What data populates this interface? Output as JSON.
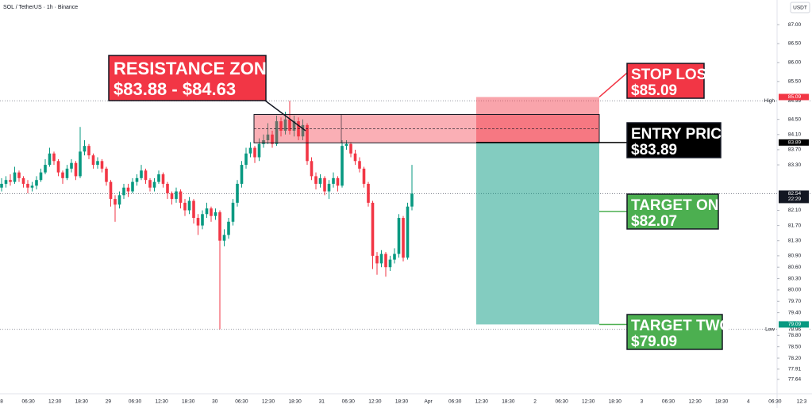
{
  "chart_data": {
    "type": "candlestick",
    "title": "SOL / TetherUS · 1h · Binance",
    "currency": "USDT",
    "up_color": "#089981",
    "down_color": "#f23645",
    "open": [
      82.7,
      82.8,
      82.9,
      82.85,
      83.1,
      82.95,
      82.8,
      82.7,
      82.75,
      82.9,
      83.1,
      83.3,
      83.6,
      83.4,
      83.1,
      82.95,
      83.2,
      83.35,
      83.0,
      83.65,
      83.8,
      83.55,
      83.3,
      83.4,
      83.2,
      82.85,
      82.4,
      82.25,
      82.5,
      82.7,
      82.6,
      82.85,
      82.95,
      83.15,
      82.9,
      82.7,
      82.85,
      83.05,
      82.8,
      82.55,
      82.4,
      82.6,
      82.3,
      82.1,
      82.35,
      81.9,
      81.7,
      82.0,
      82.15,
      81.95,
      82.05,
      81.3,
      81.45,
      81.8,
      82.3,
      82.8,
      83.3,
      83.6,
      83.75,
      83.5,
      83.85,
      83.95,
      84.1,
      83.85,
      84.45,
      84.2,
      84.5,
      84.2,
      84.45,
      84.05,
      84.35,
      83.4,
      83.0,
      82.8,
      82.95,
      82.6,
      82.8,
      82.95,
      82.75,
      83.8,
      83.85,
      83.6,
      83.4,
      83.2,
      82.8,
      82.3,
      80.9,
      80.7,
      80.95,
      80.6,
      80.8,
      80.95,
      81.9,
      80.85,
      82.2
    ],
    "high": [
      82.95,
      83.0,
      83.05,
      83.25,
      83.15,
      83.0,
      82.9,
      82.85,
      83.0,
      83.2,
      83.45,
      83.75,
      83.65,
      83.45,
      83.15,
      83.3,
      83.45,
      83.4,
      84.3,
      83.95,
      83.85,
      83.6,
      83.5,
      83.45,
      83.25,
      82.9,
      82.5,
      82.6,
      82.8,
      82.8,
      82.95,
      83.05,
      83.3,
      83.2,
      82.95,
      82.95,
      83.15,
      83.1,
      82.85,
      82.6,
      82.7,
      82.65,
      82.4,
      82.45,
      82.4,
      82.0,
      82.1,
      82.3,
      82.2,
      82.15,
      82.1,
      81.6,
      81.9,
      82.4,
      82.9,
      83.4,
      83.75,
      83.9,
      83.8,
      84.0,
      84.1,
      84.4,
      84.2,
      84.6,
      84.55,
      84.7,
      84.99,
      84.6,
      84.55,
      84.5,
      84.4,
      83.5,
      83.1,
      83.05,
      83.0,
      82.9,
      83.1,
      83.0,
      83.95,
      83.95,
      83.9,
      83.7,
      83.5,
      83.25,
      82.85,
      82.35,
      81.0,
      81.05,
      81.0,
      80.9,
      81.1,
      82.0,
      81.95,
      82.3,
      83.3
    ],
    "low": [
      82.6,
      82.7,
      82.75,
      82.8,
      82.85,
      82.7,
      82.55,
      82.6,
      82.65,
      82.85,
      83.05,
      83.25,
      83.3,
      83.0,
      82.8,
      82.9,
      83.1,
      82.9,
      82.95,
      83.55,
      83.45,
      83.2,
      83.2,
      83.1,
      82.75,
      82.2,
      81.8,
      82.15,
      82.4,
      82.45,
      82.55,
      82.75,
      82.9,
      82.8,
      82.6,
      82.6,
      82.8,
      82.7,
      82.4,
      82.25,
      82.3,
      82.15,
      81.95,
      82.0,
      81.75,
      81.45,
      81.6,
      81.9,
      81.8,
      81.85,
      78.96,
      81.15,
      81.35,
      81.7,
      82.2,
      82.7,
      83.2,
      83.5,
      83.35,
      83.4,
      83.75,
      83.85,
      83.75,
      83.8,
      84.05,
      84.1,
      84.1,
      84.05,
      83.95,
      83.95,
      83.3,
      82.9,
      82.65,
      82.7,
      82.5,
      82.4,
      82.7,
      82.6,
      82.7,
      83.7,
      83.5,
      83.3,
      83.1,
      82.7,
      82.2,
      80.55,
      80.4,
      80.6,
      80.35,
      80.5,
      80.7,
      80.85,
      80.75,
      80.8,
      82.1
    ],
    "close": [
      82.8,
      82.9,
      82.85,
      83.1,
      82.95,
      82.8,
      82.7,
      82.75,
      82.9,
      83.1,
      83.3,
      83.6,
      83.4,
      83.1,
      82.95,
      83.2,
      83.35,
      83.0,
      83.65,
      83.8,
      83.55,
      83.3,
      83.4,
      83.2,
      82.85,
      82.4,
      82.25,
      82.5,
      82.7,
      82.6,
      82.85,
      82.95,
      83.15,
      82.9,
      82.7,
      82.85,
      83.05,
      82.8,
      82.55,
      82.4,
      82.6,
      82.3,
      82.1,
      82.35,
      81.9,
      81.7,
      82.0,
      82.15,
      81.95,
      82.05,
      81.3,
      81.45,
      81.8,
      82.3,
      82.8,
      83.3,
      83.6,
      83.75,
      83.5,
      83.85,
      83.95,
      84.1,
      83.85,
      84.45,
      84.2,
      84.5,
      84.2,
      84.45,
      84.05,
      84.35,
      83.4,
      83.0,
      82.8,
      82.95,
      82.6,
      82.8,
      82.95,
      82.75,
      83.8,
      83.85,
      83.6,
      83.4,
      83.2,
      82.8,
      82.3,
      80.9,
      80.7,
      80.95,
      80.6,
      80.8,
      80.95,
      81.9,
      80.85,
      82.2,
      82.54
    ],
    "ylim": [
      77.26,
      87.65
    ],
    "yticks": [
      {
        "value": 87,
        "label": "87.00"
      },
      {
        "value": 86.5,
        "label": "86.50"
      },
      {
        "value": 86,
        "label": "86.00"
      },
      {
        "value": 85.5,
        "label": "85.50"
      },
      {
        "value": 84.5,
        "label": "84.50"
      },
      {
        "value": 84.1,
        "label": "84.10"
      },
      {
        "value": 83.7,
        "label": "83.70"
      },
      {
        "value": 83.3,
        "label": "83.30"
      },
      {
        "value": 82.1,
        "label": "82.10"
      },
      {
        "value": 81.7,
        "label": "81.70"
      },
      {
        "value": 81.3,
        "label": "81.30"
      },
      {
        "value": 80.9,
        "label": "80.90"
      },
      {
        "value": 80.6,
        "label": "80.60"
      },
      {
        "value": 80.3,
        "label": "80.30"
      },
      {
        "value": 80,
        "label": "80.00"
      },
      {
        "value": 79.7,
        "label": "79.70"
      },
      {
        "value": 79.4,
        "label": "79.40"
      },
      {
        "value": 78.8,
        "label": "78.80"
      },
      {
        "value": 78.5,
        "label": "78.50"
      },
      {
        "value": 78.2,
        "label": "78.20"
      },
      77.91,
      77.64
    ],
    "x_labels": [
      "8",
      "06:30",
      "12:30",
      "18:30",
      "29",
      "06:30",
      "12:30",
      "18:30",
      "30",
      "06:30",
      "12:30",
      "18:30",
      "31",
      "06:30",
      "12:30",
      "18:30",
      "Apr",
      "06:30",
      "12:30",
      "18:30",
      "2",
      "06:30",
      "12:30",
      "18:30",
      "3",
      "06:30",
      "12:30",
      "18:30",
      "4",
      "06:30",
      "12:3"
    ],
    "high_marker": {
      "label": "High",
      "value": 84.99
    },
    "low_marker": {
      "label": "Low",
      "value": 78.96
    },
    "last_price": 82.54,
    "countdown": "22:29",
    "resistance_zone": {
      "title": "RESISTANCE ZONE",
      "label": "$83.88 - $84.63",
      "low": 83.88,
      "high": 84.63
    },
    "stop_loss": {
      "title": "STOP LOSS",
      "label": "$85.09",
      "value": 85.09
    },
    "entry": {
      "title": "ENTRY PRICE",
      "label": "$83.89",
      "value": 83.89
    },
    "target_one": {
      "title": "TARGET ONE",
      "label": "$82.07",
      "value": 82.07
    },
    "target_two": {
      "title": "TARGET TWO",
      "label": "$79.09",
      "value": 79.09
    }
  }
}
